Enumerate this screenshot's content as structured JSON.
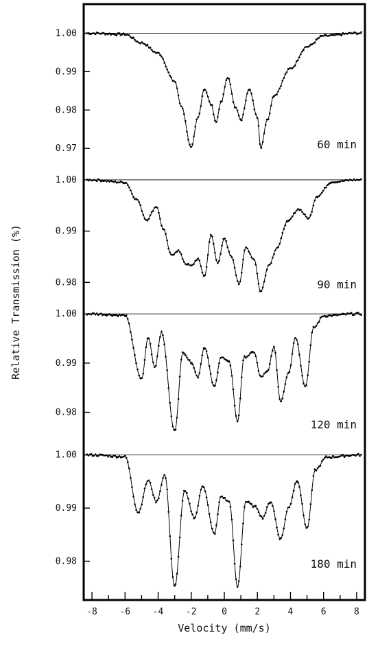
{
  "chart_data": {
    "type": "scatter",
    "xlabel": "Velocity (mm/s)",
    "ylabel": "Relative Transmission (%)",
    "xlim": [
      -8.5,
      8.5
    ],
    "xticks": [
      -8,
      -6,
      -4,
      -2,
      0,
      2,
      4,
      6,
      8
    ],
    "xtick_labels": [
      "-8",
      "-6",
      "-4",
      "-2",
      "0",
      "2",
      "4",
      "6",
      "8"
    ],
    "grid": false,
    "legend": "none",
    "panels": [
      {
        "label": "60 min",
        "ylim": [
          0.967,
          1.0015
        ],
        "yticks": [
          1.0,
          0.99,
          0.98,
          0.97
        ],
        "ytick_labels": [
          "1.00",
          "0.99",
          "0.98",
          "0.97"
        ],
        "envelope_points": [
          [
            -8.0,
            1.0
          ],
          [
            -6.0,
            0.9997
          ],
          [
            -5.0,
            0.9975
          ],
          [
            -4.0,
            0.9948
          ],
          [
            -3.0,
            0.9875
          ],
          [
            -2.6,
            0.981
          ],
          [
            -2.0,
            0.9702
          ],
          [
            -1.6,
            0.978
          ],
          [
            -1.2,
            0.9855
          ],
          [
            -0.8,
            0.9815
          ],
          [
            -0.5,
            0.9768
          ],
          [
            -0.2,
            0.982
          ],
          [
            0.2,
            0.9885
          ],
          [
            0.7,
            0.9805
          ],
          [
            1.0,
            0.9773
          ],
          [
            1.5,
            0.9855
          ],
          [
            2.0,
            0.9782
          ],
          [
            2.2,
            0.9702
          ],
          [
            2.6,
            0.9774
          ],
          [
            3.0,
            0.9838
          ],
          [
            4.0,
            0.9908
          ],
          [
            5.0,
            0.9965
          ],
          [
            6.0,
            0.9993
          ],
          [
            8.0,
            1.0
          ]
        ]
      },
      {
        "label": "90 min",
        "ylim": [
          0.9775,
          1.0012
        ],
        "yticks": [
          1.0,
          0.99,
          0.98
        ],
        "ytick_labels": [
          "1.00",
          "0.99",
          "0.98"
        ],
        "envelope_points": [
          [
            -8.0,
            1.0
          ],
          [
            -6.0,
            0.9995
          ],
          [
            -5.3,
            0.9962
          ],
          [
            -4.7,
            0.9922
          ],
          [
            -4.1,
            0.9948
          ],
          [
            -3.7,
            0.9905
          ],
          [
            -3.2,
            0.9853
          ],
          [
            -2.8,
            0.9862
          ],
          [
            -2.3,
            0.9836
          ],
          [
            -2.0,
            0.9832
          ],
          [
            -1.6,
            0.9846
          ],
          [
            -1.2,
            0.9812
          ],
          [
            -0.8,
            0.9892
          ],
          [
            -0.4,
            0.9838
          ],
          [
            0.0,
            0.9885
          ],
          [
            0.4,
            0.9852
          ],
          [
            0.9,
            0.9798
          ],
          [
            1.3,
            0.9868
          ],
          [
            1.8,
            0.9845
          ],
          [
            2.2,
            0.9782
          ],
          [
            2.7,
            0.9834
          ],
          [
            3.2,
            0.9868
          ],
          [
            3.8,
            0.9918
          ],
          [
            4.5,
            0.9943
          ],
          [
            5.1,
            0.9925
          ],
          [
            5.6,
            0.9968
          ],
          [
            6.5,
            0.9996
          ],
          [
            8.0,
            1.0
          ]
        ]
      },
      {
        "label": "120 min",
        "ylim": [
          0.9745,
          1.001
        ],
        "yticks": [
          1.0,
          0.99,
          0.98
        ],
        "ytick_labels": [
          "1.00",
          "0.99",
          "0.98"
        ],
        "envelope_points": [
          [
            -8.0,
            1.0
          ],
          [
            -6.0,
            0.9997
          ],
          [
            -5.0,
            0.9868
          ],
          [
            -4.6,
            0.9952
          ],
          [
            -4.2,
            0.9892
          ],
          [
            -3.8,
            0.9962
          ],
          [
            -3.0,
            0.9762
          ],
          [
            -2.5,
            0.9922
          ],
          [
            -2.0,
            0.9902
          ],
          [
            -1.6,
            0.9872
          ],
          [
            -1.2,
            0.9932
          ],
          [
            -0.6,
            0.9852
          ],
          [
            -0.2,
            0.9912
          ],
          [
            0.3,
            0.9902
          ],
          [
            0.8,
            0.9782
          ],
          [
            1.2,
            0.9912
          ],
          [
            1.8,
            0.9922
          ],
          [
            2.2,
            0.9872
          ],
          [
            2.6,
            0.9882
          ],
          [
            3.0,
            0.9932
          ],
          [
            3.4,
            0.9822
          ],
          [
            3.9,
            0.9882
          ],
          [
            4.3,
            0.9952
          ],
          [
            4.9,
            0.9852
          ],
          [
            5.4,
            0.9972
          ],
          [
            6.0,
            0.9996
          ],
          [
            8.0,
            1.0
          ]
        ]
      },
      {
        "label": "180 min",
        "ylim": [
          0.9745,
          1.001
        ],
        "yticks": [
          1.0,
          0.99,
          0.98
        ],
        "ytick_labels": [
          "1.00",
          "0.99",
          "0.98"
        ],
        "envelope_points": [
          [
            -8.0,
            1.0
          ],
          [
            -6.0,
            0.9997
          ],
          [
            -5.2,
            0.9892
          ],
          [
            -4.6,
            0.9952
          ],
          [
            -4.1,
            0.9912
          ],
          [
            -3.6,
            0.9962
          ],
          [
            -3.0,
            0.9752
          ],
          [
            -2.4,
            0.9932
          ],
          [
            -1.8,
            0.9882
          ],
          [
            -1.3,
            0.9942
          ],
          [
            -0.6,
            0.9852
          ],
          [
            -0.2,
            0.9922
          ],
          [
            0.3,
            0.9912
          ],
          [
            0.8,
            0.9752
          ],
          [
            1.3,
            0.9912
          ],
          [
            1.9,
            0.9902
          ],
          [
            2.3,
            0.9882
          ],
          [
            2.8,
            0.9912
          ],
          [
            3.4,
            0.9842
          ],
          [
            3.9,
            0.9902
          ],
          [
            4.4,
            0.9952
          ],
          [
            5.0,
            0.9862
          ],
          [
            5.5,
            0.9972
          ],
          [
            6.2,
            0.9996
          ],
          [
            8.0,
            1.0
          ]
        ]
      }
    ]
  }
}
